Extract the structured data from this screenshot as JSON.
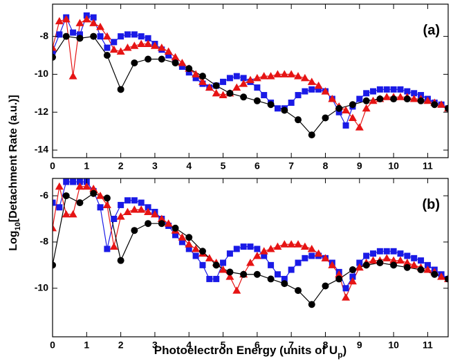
{
  "axis_labels": {
    "y": {
      "prefix": "Log",
      "sub": "10",
      "suffix": "[Detachment Rate (a.u.)]"
    },
    "x": {
      "prefix": "Photoelectron Energy (units of U",
      "sub": "p",
      "suffix": ")"
    }
  },
  "chart_data": [
    {
      "type": "line",
      "annotation": "(a)",
      "xlim": [
        0,
        11.6
      ],
      "ylim": [
        -14.4,
        -6.3
      ],
      "xticks": [
        0,
        1,
        2,
        3,
        4,
        5,
        6,
        7,
        8,
        9,
        10,
        11
      ],
      "yticks": [
        -8,
        -10,
        -12,
        -14
      ],
      "series": [
        {
          "color": "#1a1ae6",
          "marker": "square",
          "x": [
            0,
            0.2,
            0.4,
            0.6,
            0.8,
            1,
            1.2,
            1.4,
            1.6,
            1.8,
            2,
            2.2,
            2.4,
            2.6,
            2.8,
            3,
            3.2,
            3.4,
            3.6,
            3.8,
            4,
            4.2,
            4.4,
            4.6,
            4.8,
            5,
            5.2,
            5.4,
            5.6,
            5.8,
            6,
            6.2,
            6.4,
            6.6,
            6.8,
            7,
            7.2,
            7.4,
            7.6,
            7.8,
            8,
            8.2,
            8.4,
            8.6,
            8.8,
            9,
            9.2,
            9.4,
            9.6,
            9.8,
            10,
            10.2,
            10.4,
            10.6,
            10.8,
            11,
            11.2,
            11.4,
            11.6
          ],
          "values": [
            -8.8,
            -7.9,
            -7.0,
            -7.8,
            -7.9,
            -6.9,
            -7.0,
            -8.0,
            -8.6,
            -8.3,
            -8.0,
            -7.9,
            -7.9,
            -8.0,
            -8.1,
            -8.4,
            -8.7,
            -9.0,
            -9.3,
            -9.6,
            -9.9,
            -10.2,
            -10.5,
            -10.7,
            -10.6,
            -10.4,
            -10.2,
            -10.1,
            -10.2,
            -10.4,
            -10.7,
            -11.1,
            -11.5,
            -11.8,
            -11.8,
            -11.5,
            -11.1,
            -10.9,
            -10.8,
            -10.8,
            -10.9,
            -11.3,
            -12.0,
            -12.7,
            -11.7,
            -11.3,
            -11.0,
            -10.9,
            -10.8,
            -10.8,
            -10.8,
            -10.8,
            -10.9,
            -11.0,
            -11.1,
            -11.3,
            -11.5,
            -11.6,
            -11.8
          ]
        },
        {
          "color": "#e61414",
          "marker": "triangle",
          "x": [
            0,
            0.2,
            0.4,
            0.6,
            0.8,
            1,
            1.2,
            1.4,
            1.6,
            1.8,
            2,
            2.2,
            2.4,
            2.6,
            2.8,
            3,
            3.2,
            3.4,
            3.6,
            3.8,
            4,
            4.2,
            4.4,
            4.6,
            4.8,
            5,
            5.2,
            5.4,
            5.6,
            5.8,
            6,
            6.2,
            6.4,
            6.6,
            6.8,
            7,
            7.2,
            7.4,
            7.6,
            7.8,
            8,
            8.2,
            8.4,
            8.6,
            8.8,
            9,
            9.2,
            9.4,
            9.6,
            9.8,
            10,
            10.2,
            10.4,
            10.6,
            10.8,
            11,
            11.2,
            11.4,
            11.6
          ],
          "values": [
            -8.6,
            -7.2,
            -7.1,
            -10.1,
            -7.3,
            -7.1,
            -7.3,
            -7.5,
            -8.0,
            -8.7,
            -8.8,
            -8.6,
            -8.5,
            -8.4,
            -8.4,
            -8.5,
            -8.6,
            -8.8,
            -9.1,
            -9.4,
            -9.7,
            -10.0,
            -10.4,
            -10.7,
            -11.0,
            -11.1,
            -11.0,
            -10.7,
            -10.5,
            -10.3,
            -10.2,
            -10.1,
            -10.1,
            -10.0,
            -10.0,
            -10.0,
            -10.1,
            -10.2,
            -10.4,
            -10.6,
            -10.9,
            -11.3,
            -11.7,
            -11.9,
            -12.3,
            -12.8,
            -11.8,
            -11.4,
            -11.3,
            -11.2,
            -11.2,
            -11.2,
            -11.2,
            -11.3,
            -11.3,
            -11.4,
            -11.5,
            -11.6,
            -11.8
          ]
        },
        {
          "color": "#000000",
          "marker": "circle",
          "x": [
            0,
            0.4,
            0.8,
            1.2,
            1.6,
            2,
            2.4,
            2.8,
            3.2,
            3.6,
            4,
            4.4,
            4.8,
            5.2,
            5.6,
            6,
            6.4,
            6.8,
            7.2,
            7.6,
            8,
            8.4,
            8.8,
            9.2,
            9.6,
            10,
            10.4,
            10.8,
            11.2,
            11.6
          ],
          "values": [
            -9.1,
            -8.0,
            -8.1,
            -8.0,
            -9.0,
            -10.8,
            -9.4,
            -9.2,
            -9.2,
            -9.4,
            -9.7,
            -10.1,
            -10.6,
            -11.0,
            -11.2,
            -11.4,
            -11.6,
            -11.9,
            -12.4,
            -13.2,
            -12.3,
            -11.8,
            -11.6,
            -11.4,
            -11.3,
            -11.3,
            -11.3,
            -11.4,
            -11.6,
            -11.8
          ]
        }
      ]
    },
    {
      "type": "line",
      "annotation": "(b)",
      "xlim": [
        0,
        11.6
      ],
      "ylim": [
        -12.1,
        -5.25
      ],
      "xticks": [
        0,
        1,
        2,
        3,
        4,
        5,
        6,
        7,
        8,
        9,
        10,
        11
      ],
      "yticks": [
        -6,
        -8,
        -10
      ],
      "series": [
        {
          "color": "#1a1ae6",
          "marker": "square",
          "x": [
            0,
            0.2,
            0.4,
            0.6,
            0.8,
            1,
            1.2,
            1.4,
            1.6,
            1.8,
            2,
            2.2,
            2.4,
            2.6,
            2.8,
            3,
            3.2,
            3.4,
            3.6,
            3.8,
            4,
            4.2,
            4.4,
            4.6,
            4.8,
            5,
            5.2,
            5.4,
            5.6,
            5.8,
            6,
            6.2,
            6.4,
            6.6,
            6.8,
            7,
            7.2,
            7.4,
            7.6,
            7.8,
            8,
            8.2,
            8.4,
            8.6,
            8.8,
            9,
            9.2,
            9.4,
            9.6,
            9.8,
            10,
            10.2,
            10.4,
            10.6,
            10.8,
            11,
            11.2,
            11.4,
            11.6
          ],
          "values": [
            -6.3,
            -6.5,
            -5.4,
            -5.4,
            -5.4,
            -5.4,
            -5.8,
            -6.5,
            -8.3,
            -7.0,
            -6.4,
            -6.2,
            -6.2,
            -6.3,
            -6.5,
            -6.7,
            -7.0,
            -7.3,
            -7.7,
            -8.0,
            -8.3,
            -8.6,
            -9.0,
            -9.6,
            -9.6,
            -8.9,
            -8.5,
            -8.3,
            -8.2,
            -8.2,
            -8.3,
            -8.6,
            -9.0,
            -9.4,
            -9.6,
            -9.2,
            -8.9,
            -8.7,
            -8.6,
            -8.6,
            -8.7,
            -8.9,
            -9.3,
            -10.0,
            -9.5,
            -8.9,
            -8.6,
            -8.5,
            -8.4,
            -8.4,
            -8.4,
            -8.5,
            -8.6,
            -8.7,
            -8.8,
            -9.0,
            -9.2,
            -9.4,
            -9.6
          ]
        },
        {
          "color": "#e61414",
          "marker": "triangle",
          "x": [
            0,
            0.2,
            0.4,
            0.6,
            0.8,
            1,
            1.2,
            1.4,
            1.6,
            1.8,
            2,
            2.2,
            2.4,
            2.6,
            2.8,
            3,
            3.2,
            3.4,
            3.6,
            3.8,
            4,
            4.2,
            4.4,
            4.6,
            4.8,
            5,
            5.2,
            5.4,
            5.6,
            5.8,
            6,
            6.2,
            6.4,
            6.6,
            6.8,
            7,
            7.2,
            7.4,
            7.6,
            7.8,
            8,
            8.2,
            8.4,
            8.6,
            8.8,
            9,
            9.2,
            9.4,
            9.6,
            9.8,
            10,
            10.2,
            10.4,
            10.6,
            10.8,
            11,
            11.2,
            11.4,
            11.6
          ],
          "values": [
            -7.4,
            -5.6,
            -6.8,
            -6.8,
            -5.6,
            -5.6,
            -5.7,
            -6.0,
            -6.4,
            -8.2,
            -6.9,
            -6.7,
            -6.6,
            -6.6,
            -6.7,
            -6.8,
            -7.0,
            -7.2,
            -7.5,
            -7.8,
            -8.1,
            -8.3,
            -8.5,
            -8.7,
            -8.9,
            -9.2,
            -9.5,
            -10.1,
            -9.4,
            -8.9,
            -8.6,
            -8.4,
            -8.3,
            -8.2,
            -8.1,
            -8.1,
            -8.1,
            -8.2,
            -8.3,
            -8.5,
            -8.7,
            -9.0,
            -9.4,
            -10.4,
            -9.7,
            -9.1,
            -8.9,
            -8.8,
            -8.8,
            -8.7,
            -8.8,
            -8.8,
            -8.9,
            -9.0,
            -9.1,
            -9.2,
            -9.3,
            -9.5,
            -9.6
          ]
        },
        {
          "color": "#000000",
          "marker": "circle",
          "x": [
            0,
            0.4,
            0.8,
            1.2,
            1.6,
            2,
            2.4,
            2.8,
            3.2,
            3.6,
            4,
            4.4,
            4.8,
            5.2,
            5.6,
            6,
            6.4,
            6.8,
            7.2,
            7.6,
            8,
            8.4,
            8.8,
            9.2,
            9.6,
            10,
            10.4,
            10.8,
            11.2,
            11.6
          ],
          "values": [
            -9.0,
            -6.0,
            -6.3,
            -5.9,
            -6.1,
            -8.8,
            -7.5,
            -7.2,
            -7.2,
            -7.4,
            -7.8,
            -8.4,
            -9.0,
            -9.3,
            -9.4,
            -9.4,
            -9.6,
            -9.8,
            -10.1,
            -10.7,
            -9.9,
            -9.6,
            -9.2,
            -9.0,
            -8.9,
            -9.0,
            -9.1,
            -9.2,
            -9.4,
            -9.6
          ]
        }
      ]
    }
  ]
}
